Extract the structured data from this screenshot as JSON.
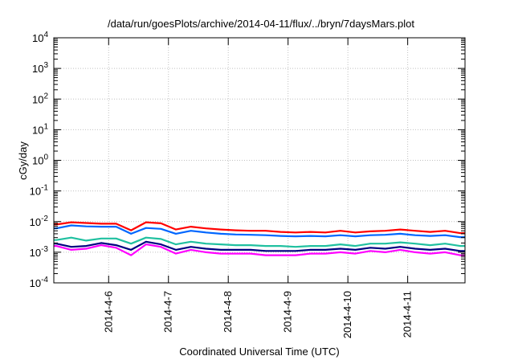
{
  "chart_data": {
    "type": "line",
    "title": "/data/run/goesPlots/archive/2014-04-11/flux/../bryn/7daysMars.plot",
    "xlabel": "Coordinated Universal Time (UTC)",
    "ylabel": "cGy/day",
    "y_scale": "log",
    "ylim": [
      "1e-4",
      "1e4"
    ],
    "y_ticks": [
      {
        "base": "10",
        "exp": "4",
        "value": 10000
      },
      {
        "base": "10",
        "exp": "3",
        "value": 1000
      },
      {
        "base": "10",
        "exp": "2",
        "value": 100
      },
      {
        "base": "10",
        "exp": "1",
        "value": 10
      },
      {
        "base": "10",
        "exp": "0",
        "value": 1
      },
      {
        "base": "10",
        "exp": "-1",
        "value": 0.1
      },
      {
        "base": "10",
        "exp": "-2",
        "value": 0.01
      },
      {
        "base": "10",
        "exp": "-3",
        "value": 0.001
      },
      {
        "base": "10",
        "exp": "-4",
        "value": 0.0001
      }
    ],
    "xlim": [
      "2014-04-05 02:00",
      "2014-04-11 23:00"
    ],
    "x_ticks": [
      "2014-4-6",
      "2014-4-7",
      "2014-4-8",
      "2014-4-9",
      "2014-4-10",
      "2014-4-11"
    ],
    "grid": true,
    "x": [
      "2014-04-05 03:00",
      "2014-04-05 09:00",
      "2014-04-05 15:00",
      "2014-04-05 21:00",
      "2014-04-06 03:00",
      "2014-04-06 09:00",
      "2014-04-06 15:00",
      "2014-04-06 21:00",
      "2014-04-07 03:00",
      "2014-04-07 09:00",
      "2014-04-07 15:00",
      "2014-04-07 21:00",
      "2014-04-08 03:00",
      "2014-04-08 09:00",
      "2014-04-08 15:00",
      "2014-04-08 21:00",
      "2014-04-09 03:00",
      "2014-04-09 09:00",
      "2014-04-09 15:00",
      "2014-04-09 21:00",
      "2014-04-10 03:00",
      "2014-04-10 09:00",
      "2014-04-10 15:00",
      "2014-04-10 21:00",
      "2014-04-11 03:00",
      "2014-04-11 09:00",
      "2014-04-11 15:00",
      "2014-04-11 21:00"
    ],
    "series": [
      {
        "color": "#ff0000",
        "values": [
          0.008,
          0.0095,
          0.009,
          0.0085,
          0.0085,
          0.0052,
          0.0095,
          0.0088,
          0.0055,
          0.0068,
          0.006,
          0.0055,
          0.0052,
          0.005,
          0.005,
          0.0046,
          0.0044,
          0.0046,
          0.0044,
          0.005,
          0.0044,
          0.0048,
          0.005,
          0.0055,
          0.005,
          0.0046,
          0.005,
          0.0042
        ]
      },
      {
        "color": "#0066ff",
        "values": [
          0.006,
          0.0075,
          0.007,
          0.0068,
          0.0068,
          0.004,
          0.0062,
          0.0058,
          0.004,
          0.005,
          0.0044,
          0.004,
          0.0038,
          0.0037,
          0.0036,
          0.0034,
          0.0033,
          0.0034,
          0.0033,
          0.0036,
          0.0033,
          0.0036,
          0.0037,
          0.004,
          0.0036,
          0.0034,
          0.0036,
          0.0031
        ]
      },
      {
        "color": "#20c0a0",
        "values": [
          0.0025,
          0.003,
          0.0024,
          0.0028,
          0.0028,
          0.0019,
          0.003,
          0.0027,
          0.0018,
          0.0022,
          0.0019,
          0.0018,
          0.0017,
          0.0017,
          0.0016,
          0.0016,
          0.0015,
          0.0016,
          0.0016,
          0.0018,
          0.0016,
          0.0019,
          0.0019,
          0.0021,
          0.0019,
          0.0017,
          0.0019,
          0.0016
        ]
      },
      {
        "color": "#000080",
        "values": [
          0.0019,
          0.0015,
          0.0016,
          0.002,
          0.0017,
          0.0012,
          0.0022,
          0.0018,
          0.0012,
          0.0015,
          0.0013,
          0.0012,
          0.0012,
          0.0012,
          0.0011,
          0.0011,
          0.0011,
          0.0012,
          0.0012,
          0.0013,
          0.0012,
          0.0014,
          0.0013,
          0.0015,
          0.0013,
          0.0012,
          0.0013,
          0.0011
        ]
      },
      {
        "color": "#ff00ff",
        "values": [
          0.0016,
          0.0012,
          0.0013,
          0.0017,
          0.0014,
          0.0008,
          0.0018,
          0.0015,
          0.0009,
          0.0012,
          0.001,
          0.0009,
          0.0009,
          0.0009,
          0.0008,
          0.0008,
          0.0008,
          0.0009,
          0.0009,
          0.001,
          0.0009,
          0.0011,
          0.001,
          0.0012,
          0.001,
          0.0009,
          0.001,
          0.0008
        ]
      }
    ]
  }
}
